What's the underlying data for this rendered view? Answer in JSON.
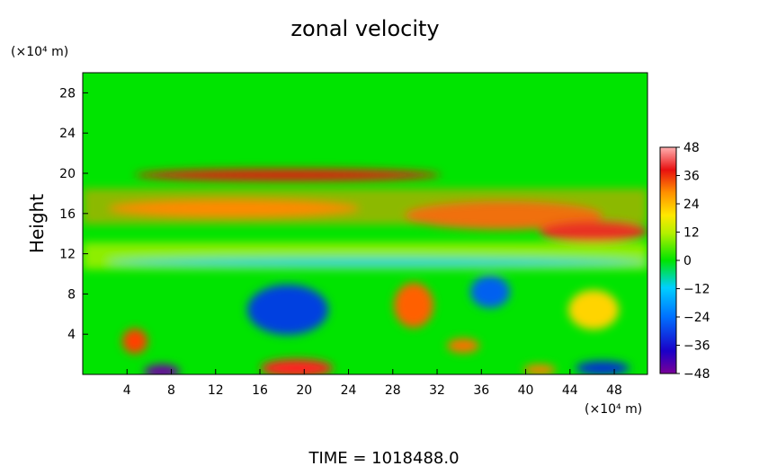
{
  "chart_data": {
    "type": "heatmap",
    "title": "zonal velocity",
    "ylabel": "Height",
    "y_unit": "(×10⁴ m)",
    "x_unit": "(×10⁴ m)",
    "xlim": [
      0,
      51
    ],
    "ylim": [
      0,
      30
    ],
    "x_ticks": [
      "4",
      "8",
      "12",
      "16",
      "20",
      "24",
      "28",
      "32",
      "36",
      "40",
      "44",
      "48"
    ],
    "y_ticks": [
      "4",
      "8",
      "12",
      "16",
      "20",
      "24",
      "28"
    ],
    "colorbar": {
      "range": [
        -48,
        48
      ],
      "labels": [
        "48",
        "36",
        "24",
        "12",
        "0",
        "−12",
        "−24",
        "−36",
        "−48"
      ]
    },
    "footer": "TIME = 1018488.0"
  }
}
